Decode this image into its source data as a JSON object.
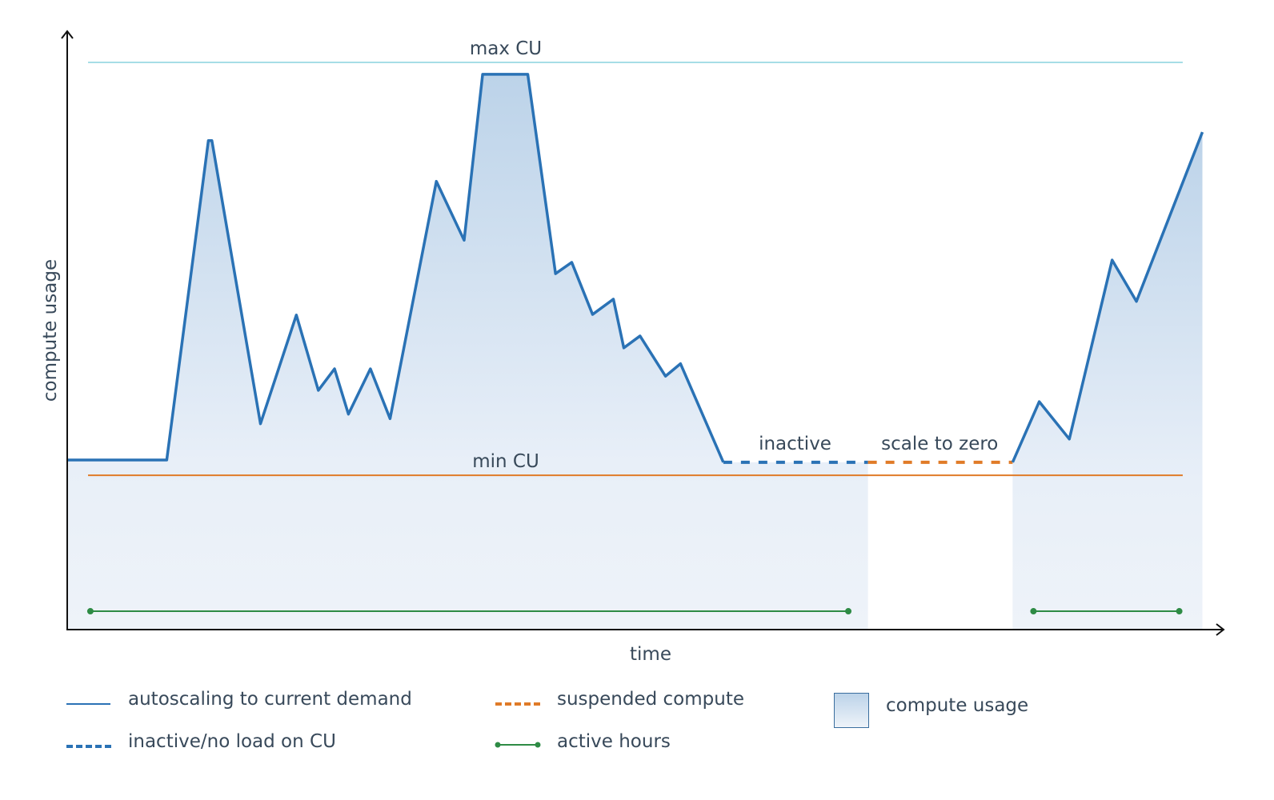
{
  "chart_data": {
    "type": "area",
    "xlabel": "time",
    "ylabel": "compute usage",
    "xlim": [
      0,
      100
    ],
    "ylim": [
      0,
      105
    ],
    "grid": false,
    "legend_placement": "bottom",
    "series": [
      {
        "name": "autoscaling to current demand",
        "style": "solid",
        "color": "#2a72b5",
        "points": [
          [
            0,
            29.8
          ],
          [
            8.6,
            29.8
          ],
          [
            12.2,
            86.2
          ],
          [
            12.5,
            86.2
          ],
          [
            16.7,
            36.2
          ],
          [
            19.8,
            55.4
          ],
          [
            21.7,
            42.1
          ],
          [
            23.1,
            45.9
          ],
          [
            24.3,
            37.9
          ],
          [
            26.2,
            45.9
          ],
          [
            27.9,
            37.1
          ],
          [
            31.9,
            79.0
          ],
          [
            34.3,
            68.6
          ],
          [
            35.9,
            97.9
          ],
          [
            39.8,
            97.9
          ],
          [
            42.2,
            62.7
          ],
          [
            43.6,
            64.7
          ],
          [
            45.4,
            55.5
          ],
          [
            47.2,
            58.2
          ],
          [
            48.1,
            49.6
          ],
          [
            49.5,
            51.7
          ],
          [
            51.7,
            44.6
          ],
          [
            53.0,
            46.8
          ],
          [
            56.7,
            29.4
          ]
        ]
      },
      {
        "name": "inactive/no load on CU",
        "style": "dashed",
        "color": "#2a72b5",
        "points": [
          [
            56.7,
            29.4
          ],
          [
            69.2,
            29.4
          ]
        ]
      },
      {
        "name": "suspended compute",
        "style": "dashed",
        "color": "#e07b28",
        "points": [
          [
            69.2,
            29.4
          ],
          [
            81.7,
            29.4
          ]
        ]
      },
      {
        "name": "autoscaling to current demand",
        "style": "solid",
        "color": "#2a72b5",
        "points": [
          [
            81.7,
            29.4
          ],
          [
            84.0,
            40.1
          ],
          [
            86.6,
            33.5
          ],
          [
            90.3,
            65.1
          ],
          [
            92.4,
            57.8
          ],
          [
            98.1,
            87.7
          ]
        ]
      }
    ],
    "area": {
      "name": "compute usage",
      "ranges": [
        [
          0,
          69.2
        ],
        [
          81.7,
          98.1
        ]
      ],
      "color_top": "#bcd3e9",
      "color_bottom": "#eef3f9"
    },
    "reference_lines": [
      {
        "label": "max CU",
        "value": 100,
        "x_range": [
          1.8,
          96.4
        ],
        "color": "#a6dde6"
      },
      {
        "label": "min CU",
        "value": 27.1,
        "x_range": [
          1.8,
          96.4
        ],
        "color": "#e07b28"
      }
    ],
    "active_hours": {
      "name": "active hours",
      "color": "#2e8b45",
      "value": 3.1,
      "ranges": [
        [
          2.0,
          67.5
        ],
        [
          83.5,
          96.1
        ]
      ]
    },
    "annotations": [
      {
        "text": "inactive",
        "x": 62.9,
        "y": 32.5
      },
      {
        "text": "scale to zero",
        "x": 75.4,
        "y": 32.5
      }
    ]
  },
  "legend": {
    "autoscaling": "autoscaling to current demand",
    "inactive": "inactive/no load on CU",
    "suspended": "suspended compute",
    "active_hours": "active hours",
    "compute_usage": "compute usage"
  }
}
